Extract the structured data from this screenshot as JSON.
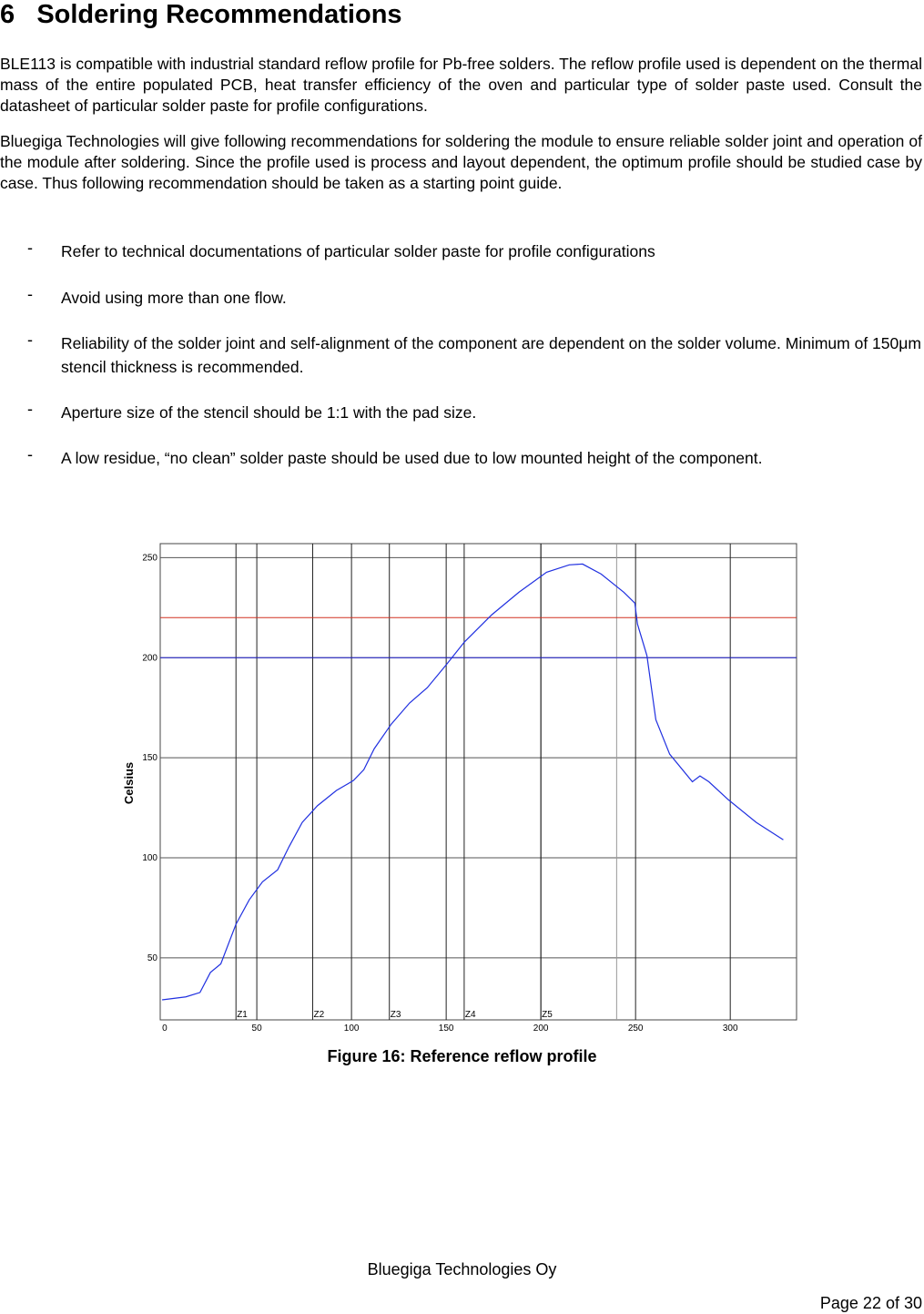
{
  "header": {
    "number": "6",
    "title": "Soldering Recommendations"
  },
  "paragraphs": [
    "BLE113 is compatible with industrial standard reflow profile for Pb-free solders. The reflow profile used is dependent on the thermal mass of the entire populated PCB, heat transfer efficiency of the oven and particular type of solder paste used. Consult the datasheet of particular solder paste for profile configurations.",
    "Bluegiga Technologies will give following recommendations for soldering the module to ensure reliable solder joint and operation of the module after soldering. Since the profile used is process and layout dependent, the optimum profile should be studied case by case. Thus following recommendation should be taken as a starting point guide."
  ],
  "bullet_marker": "-",
  "bullets": [
    "Refer to technical documentations of particular solder paste for profile configurations",
    "Avoid using more than one flow.",
    "Reliability of the solder joint and self-alignment of the component are dependent on the solder volume. Minimum of 150μm stencil thickness is recommended.",
    "Aperture size of the stencil should be 1:1 with the pad size.",
    "A low residue, “no clean” solder paste should be used due to low mounted height of the component."
  ],
  "chart_data": {
    "type": "line",
    "y_label": "Celsius",
    "x": [
      0,
      12.5,
      20,
      25.5,
      31,
      39,
      46,
      53,
      61,
      67,
      74,
      82,
      92,
      101,
      106.5,
      112,
      121,
      130.6,
      140,
      150,
      159.5,
      174,
      188.4,
      203,
      215,
      222,
      231.8,
      243.8,
      249.6,
      251,
      256,
      260.7,
      268,
      280,
      284,
      288.7,
      299,
      313.7,
      328
    ],
    "series": [
      {
        "color": "#2030e0",
        "values": [
          29,
          30.5,
          32.7,
          42.7,
          47,
          66.8,
          79,
          88,
          94,
          105.5,
          117.7,
          126,
          133.6,
          138.6,
          144,
          154.5,
          166.8,
          177.3,
          185,
          196.4,
          207.7,
          221.4,
          232.7,
          242.7,
          246.4,
          246.8,
          241.8,
          232.7,
          227.3,
          216.8,
          201,
          169,
          151.8,
          138,
          140.9,
          138,
          129,
          117.7,
          109
        ]
      }
    ],
    "xlim": [
      -1,
      335
    ],
    "ylim": [
      19,
      257
    ],
    "xticks": [
      0,
      50,
      100,
      150,
      200,
      250,
      300
    ],
    "yticks": [
      50,
      100,
      150,
      200,
      250
    ],
    "grid": true,
    "hlines": [
      {
        "value": 220,
        "color": "#d03020"
      },
      {
        "value": 200,
        "color": "#2020d0"
      }
    ],
    "zones": [
      {
        "label": "Z1",
        "x": 39
      },
      {
        "label": "Z2",
        "x": 79.5
      },
      {
        "label": "Z3",
        "x": 120
      },
      {
        "label": "Z4",
        "x": 159.5
      },
      {
        "label": "Z5",
        "x": 200
      }
    ],
    "vlines": [
      240
    ]
  },
  "caption": "Figure 16: Reference reflow profile",
  "footer": {
    "company": "Bluegiga Technologies Oy",
    "page": "Page 22 of 30"
  }
}
